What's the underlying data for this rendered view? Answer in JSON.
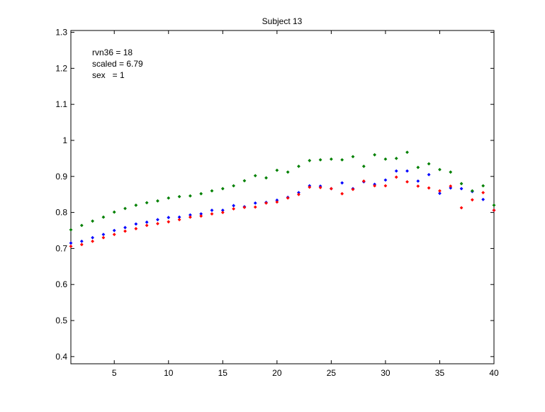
{
  "chart_data": {
    "type": "scatter",
    "title": "Subject 13",
    "xlabel": "",
    "ylabel": "",
    "xlim": [
      1,
      40
    ],
    "ylim": [
      0.38,
      1.305
    ],
    "xticks": [
      5,
      10,
      15,
      20,
      25,
      30,
      35,
      40
    ],
    "xtick_labels": [
      "5",
      "10",
      "15",
      "20",
      "25",
      "30",
      "35",
      "40"
    ],
    "yticks": [
      0.4,
      0.5,
      0.6,
      0.7,
      0.8,
      0.9,
      1.0,
      1.1,
      1.2,
      1.3
    ],
    "ytick_labels": [
      "0.4",
      "0.5",
      "0.6",
      "0.7",
      "0.8",
      "0.9",
      "1",
      "1.1",
      "1.2",
      "1.3"
    ],
    "grid": false,
    "annotations": [
      "rvn36 = 18",
      "scaled = 6.79",
      "sex   = 1"
    ],
    "x": [
      1,
      2,
      3,
      4,
      5,
      6,
      7,
      8,
      9,
      10,
      11,
      12,
      13,
      14,
      15,
      16,
      17,
      18,
      19,
      20,
      21,
      22,
      23,
      24,
      25,
      26,
      27,
      28,
      29,
      30,
      31,
      32,
      33,
      34,
      35,
      36,
      37,
      38,
      39,
      40
    ],
    "series": [
      {
        "color": "#0000ff",
        "values": [
          0.715,
          0.72,
          0.73,
          0.739,
          0.75,
          0.758,
          0.768,
          0.773,
          0.78,
          0.786,
          0.787,
          0.793,
          0.796,
          0.806,
          0.806,
          0.819,
          0.816,
          0.826,
          0.828,
          0.834,
          0.842,
          0.855,
          0.874,
          0.873,
          0.866,
          0.882,
          0.866,
          0.885,
          0.878,
          0.89,
          0.915,
          0.915,
          0.887,
          0.905,
          0.853,
          0.868,
          0.866,
          0.858,
          0.836,
          0.806
        ]
      },
      {
        "color": "#ff0000",
        "values": [
          0.706,
          0.711,
          0.72,
          0.73,
          0.739,
          0.748,
          0.755,
          0.764,
          0.769,
          0.774,
          0.78,
          0.787,
          0.79,
          0.796,
          0.8,
          0.81,
          0.814,
          0.815,
          0.826,
          0.829,
          0.84,
          0.85,
          0.87,
          0.869,
          0.866,
          0.852,
          0.864,
          0.887,
          0.874,
          0.874,
          0.898,
          0.885,
          0.873,
          0.868,
          0.86,
          0.873,
          0.813,
          0.835,
          0.855,
          0.806
        ]
      },
      {
        "color": "#008000",
        "values": [
          0.752,
          0.764,
          0.776,
          0.787,
          0.801,
          0.811,
          0.82,
          0.827,
          0.832,
          0.84,
          0.844,
          0.846,
          0.852,
          0.86,
          0.866,
          0.874,
          0.888,
          0.902,
          0.896,
          0.917,
          0.912,
          0.928,
          0.944,
          0.946,
          0.948,
          0.946,
          0.955,
          0.928,
          0.96,
          0.948,
          0.95,
          0.967,
          0.925,
          0.935,
          0.919,
          0.912,
          0.88,
          0.86,
          0.874,
          0.82
        ]
      }
    ]
  }
}
